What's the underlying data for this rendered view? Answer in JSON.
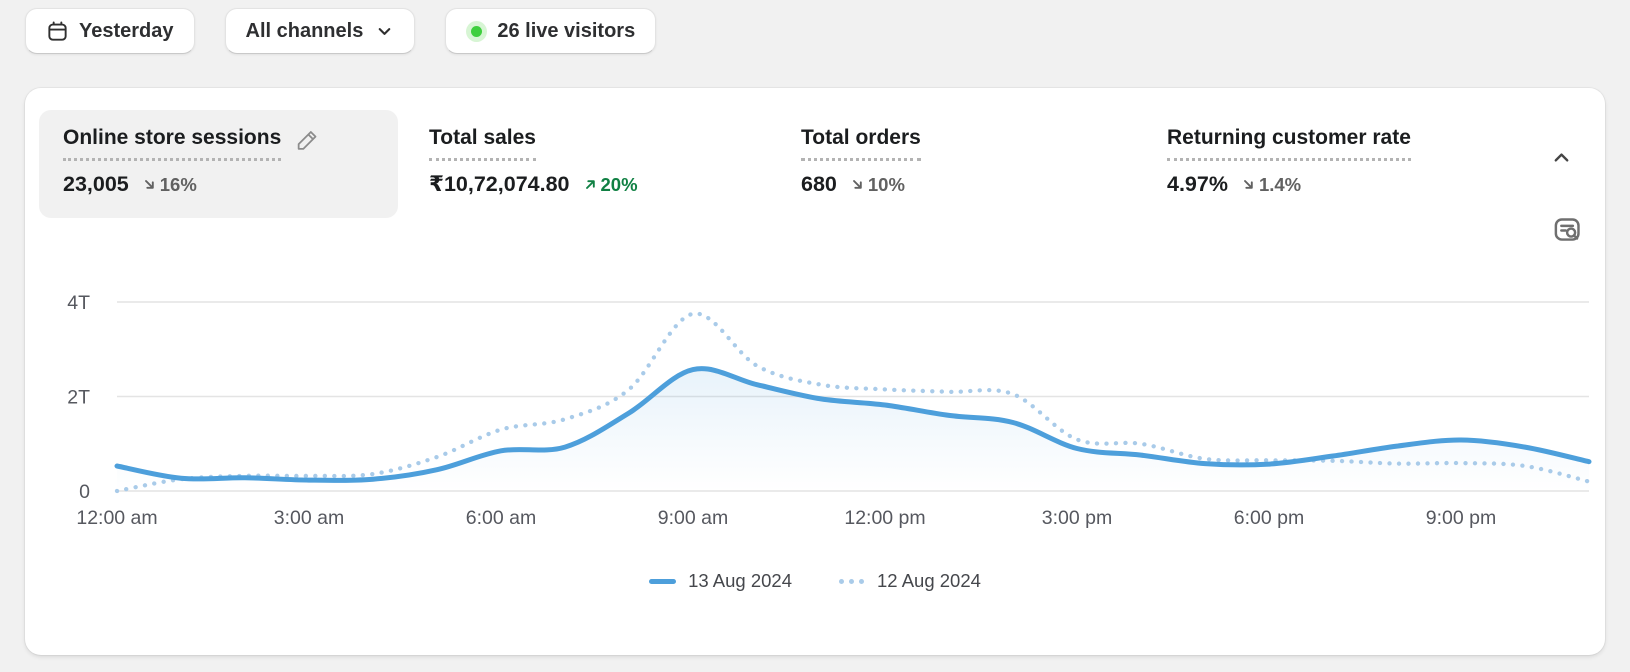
{
  "topbar": {
    "date_range": {
      "label": "Yesterday",
      "icon": "calendar-icon"
    },
    "channels": {
      "label": "All channels",
      "icon": "chevron-down-icon"
    },
    "live_visitors": {
      "label": "26 live visitors",
      "count": 26,
      "dot_color": "#3ecf3e"
    }
  },
  "metrics": [
    {
      "label": "Online store sessions",
      "value": "23,005",
      "change": "16%",
      "direction": "down",
      "selected": true,
      "editable": true
    },
    {
      "label": "Total sales",
      "value": "₹10,72,074.80",
      "change": "20%",
      "direction": "up",
      "selected": false
    },
    {
      "label": "Total orders",
      "value": "680",
      "change": "10%",
      "direction": "down",
      "selected": false
    },
    {
      "label": "Returning customer rate",
      "value": "4.97%",
      "change": "1.4%",
      "direction": "down",
      "selected": false
    }
  ],
  "colors": {
    "positive_green": "#108043",
    "neutral_gray": "#616161",
    "grid": "#e4e4e4",
    "page_background": "#f1f1f1"
  },
  "chart_data": {
    "type": "line",
    "x": [
      "12:00 am",
      "1:00 am",
      "2:00 am",
      "3:00 am",
      "4:00 am",
      "5:00 am",
      "6:00 am",
      "7:00 am",
      "8:00 am",
      "9:00 am",
      "10:00 am",
      "11:00 am",
      "12:00 pm",
      "1:00 pm",
      "2:00 pm",
      "3:00 pm",
      "4:00 pm",
      "5:00 pm",
      "6:00 pm",
      "7:00 pm",
      "8:00 pm",
      "9:00 pm",
      "10:00 pm",
      "11:00 pm"
    ],
    "xticks": [
      "12:00 am",
      "3:00 am",
      "6:00 am",
      "9:00 am",
      "12:00 pm",
      "3:00 pm",
      "6:00 pm",
      "9:00 pm"
    ],
    "yticks": [
      {
        "label": "0",
        "value": 0
      },
      {
        "label": "2T",
        "value": 2000
      },
      {
        "label": "4T",
        "value": 4000
      }
    ],
    "ylim": [
      0,
      4000
    ],
    "grid": true,
    "legend_position": "bottom",
    "series": [
      {
        "name": "13 Aug 2024",
        "style": "solid",
        "color": "#4d9fdb",
        "fill": true,
        "values": [
          530,
          270,
          280,
          230,
          250,
          450,
          850,
          930,
          1650,
          2570,
          2250,
          1950,
          1820,
          1600,
          1450,
          900,
          760,
          580,
          570,
          740,
          950,
          1080,
          930,
          620
        ]
      },
      {
        "name": "12 Aug 2024",
        "style": "dotted",
        "color": "#a9cbe9",
        "fill": false,
        "values": [
          0,
          250,
          320,
          320,
          360,
          720,
          1300,
          1520,
          2150,
          3750,
          2650,
          2250,
          2150,
          2100,
          2050,
          1090,
          1000,
          680,
          650,
          640,
          580,
          590,
          530,
          200
        ]
      }
    ]
  }
}
